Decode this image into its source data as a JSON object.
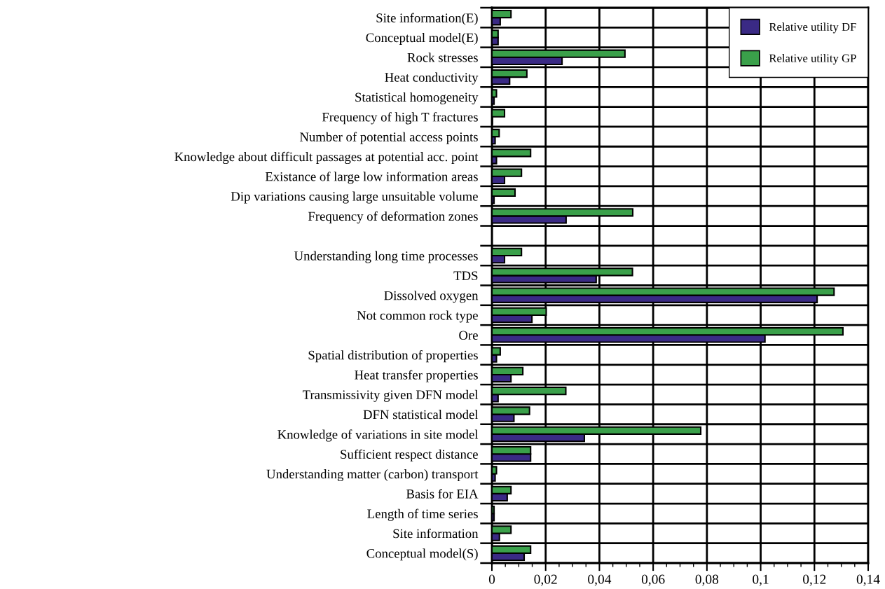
{
  "chart_data": {
    "type": "bar",
    "orientation": "horizontal",
    "categories": [
      "Site information(E)",
      "Conceptual model(E)",
      "Rock stresses",
      "Heat conductivity",
      "Statistical homogeneity",
      "Frequency of high T fractures",
      "Number of potential access points",
      "Knowledge about difficult passages at potential acc. point",
      "Existance of large low information areas",
      "Dip variations causing large unsuitable volume",
      "Frequency of deformation zones",
      null,
      "Understanding long time processes",
      "TDS",
      "Dissolved oxygen",
      "Not common rock type",
      "Ore",
      "Spatial distribution of properties",
      "Heat transfer properties",
      "Transmissivity given DFN model",
      "DFN statistical model",
      "Knowledge of variations in site model",
      "Sufficient respect distance",
      "Understanding matter (carbon) transport",
      "Basis for EIA",
      "Length of time series",
      "Site information",
      "Conceptual model(S)"
    ],
    "series": [
      {
        "name": "Relative utility DF",
        "color": "#3a2a85",
        "values": [
          0.0031,
          0.0023,
          0.0261,
          0.0066,
          0.0008,
          0.0002,
          0.0012,
          0.0017,
          0.0047,
          0.0008,
          0.0276,
          null,
          0.0047,
          0.0388,
          0.121,
          0.0149,
          0.1016,
          0.0017,
          0.0071,
          0.0023,
          0.0082,
          0.0344,
          0.0144,
          0.0012,
          0.0057,
          0.0008,
          0.0028,
          0.012
        ]
      },
      {
        "name": "Relative utility GP",
        "color": "#3aa04a",
        "values": [
          0.0071,
          0.0023,
          0.0495,
          0.013,
          0.0017,
          0.0047,
          0.0027,
          0.0144,
          0.011,
          0.0086,
          0.0524,
          null,
          0.011,
          0.0523,
          0.1273,
          0.0202,
          0.1306,
          0.0031,
          0.0115,
          0.0275,
          0.014,
          0.0777,
          0.0144,
          0.0017,
          0.0071,
          0.0008,
          0.0071,
          0.0144
        ]
      }
    ],
    "xlim": [
      0,
      0.14
    ],
    "xticks": [
      0,
      {
        "value": 0.02,
        "label": "0,02"
      },
      {
        "value": 0.04,
        "label": "0,04"
      },
      {
        "value": 0.06,
        "label": "0,06"
      },
      {
        "value": 0.08,
        "label": "0,08"
      },
      {
        "value": 0.1,
        "label": "0,1"
      },
      {
        "value": 0.12,
        "label": "0,12"
      },
      {
        "value": 0.14,
        "label": "0,14"
      }
    ],
    "grid": true,
    "legend": "top right"
  }
}
